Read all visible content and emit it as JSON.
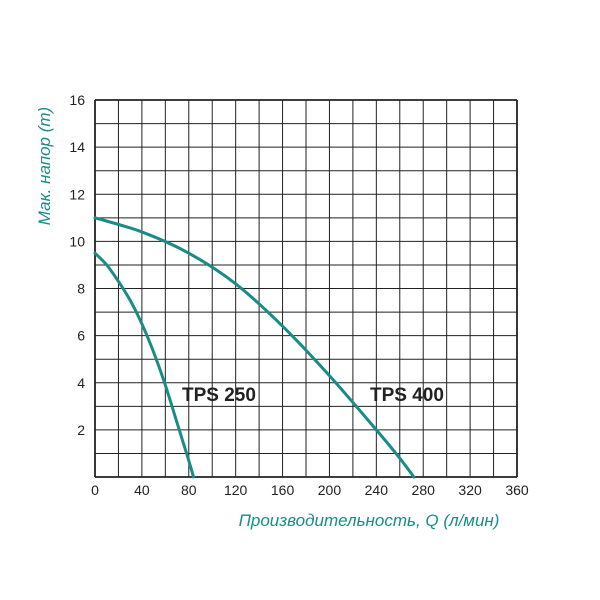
{
  "colors": {
    "curve": "#1a8c87",
    "axis_label": "#1a8c87",
    "grid": "#222222",
    "text": "#222222"
  },
  "chart_data": {
    "type": "line",
    "xlabel": "Производительность, Q (л/мин)",
    "ylabel": "Мак. напор (m)",
    "xlim": [
      0,
      360
    ],
    "ylim": [
      0,
      16
    ],
    "x_ticks": [
      0,
      40,
      80,
      120,
      160,
      200,
      240,
      280,
      320,
      360
    ],
    "y_ticks": [
      2,
      4,
      6,
      8,
      10,
      12,
      14,
      16
    ],
    "grid": true,
    "series": [
      {
        "name": "TPS 250",
        "x": [
          0,
          10,
          20,
          30,
          40,
          50,
          60,
          70,
          80,
          84
        ],
        "y": [
          9.5,
          9.0,
          8.3,
          7.5,
          6.5,
          5.3,
          3.9,
          2.3,
          0.7,
          0
        ]
      },
      {
        "name": "TPS 400",
        "x": [
          0,
          40,
          80,
          120,
          160,
          200,
          240,
          260,
          272
        ],
        "y": [
          11.0,
          10.4,
          9.5,
          8.2,
          6.4,
          4.3,
          2.0,
          0.8,
          0
        ]
      }
    ]
  }
}
